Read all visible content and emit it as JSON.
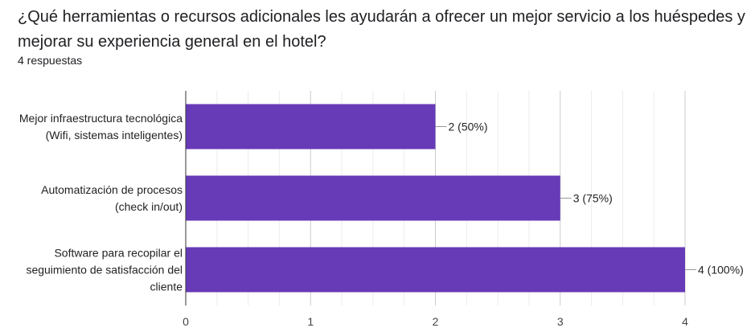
{
  "question": {
    "title": "¿Qué herramientas o recursos adicionales les ayudarán a ofrecer un mejor servicio a los huéspedes y mejorar su experiencia general en el hotel?",
    "responses": "4 respuestas"
  },
  "chart_data": {
    "type": "bar",
    "orientation": "horizontal",
    "categories": [
      [
        "Mejor infraestructura tecnológica",
        "(Wifi, sistemas inteligentes)"
      ],
      [
        "Automatización de procesos",
        "(check in/out)"
      ],
      [
        "Software para recopilar el",
        "seguimiento de satisfacción del",
        "cliente"
      ]
    ],
    "values": [
      2,
      3,
      4
    ],
    "data_labels": [
      "2 (50%)",
      "3 (75%)",
      "4 (100%)"
    ],
    "xlim": [
      0,
      4
    ],
    "xticks": [
      "0",
      "1",
      "2",
      "3",
      "4"
    ],
    "grid": true,
    "bar_color": "#673ab7"
  }
}
